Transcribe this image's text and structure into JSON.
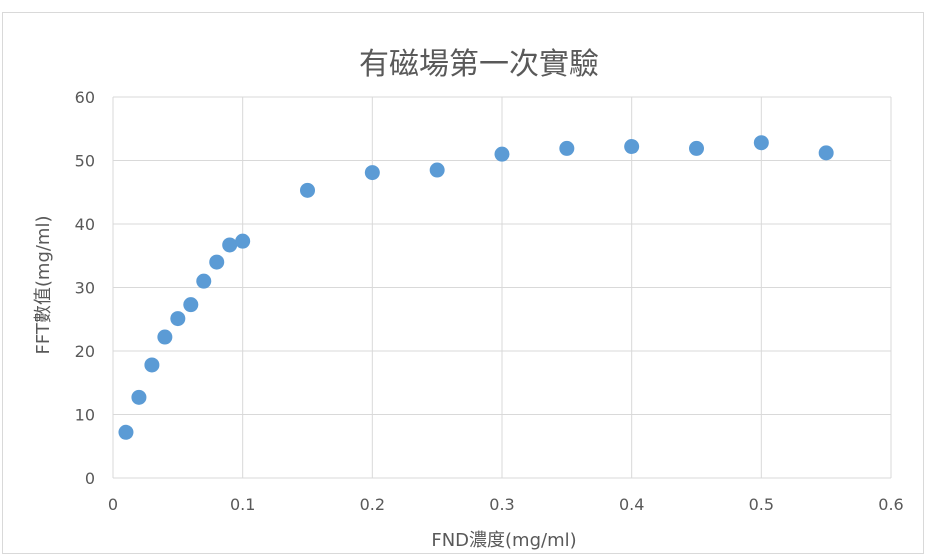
{
  "chart_data": {
    "type": "scatter",
    "title": "有磁場第一次實驗",
    "xlabel": "FND濃度(mg/ml)",
    "ylabel": "FFT數值(mg/ml)",
    "xlim": [
      0,
      0.6
    ],
    "ylim": [
      0,
      60
    ],
    "x_ticks": [
      "0",
      "0.1",
      "0.2",
      "0.3",
      "0.4",
      "0.5",
      "0.6"
    ],
    "y_ticks": [
      "0",
      "10",
      "20",
      "30",
      "40",
      "50",
      "60"
    ],
    "x_tick_values": [
      0,
      0.1,
      0.2,
      0.3,
      0.4,
      0.5,
      0.6
    ],
    "y_tick_values": [
      0,
      10,
      20,
      30,
      40,
      50,
      60
    ],
    "grid": true,
    "legend": "none",
    "marker_color": "#5b9bd5",
    "points": [
      {
        "x": 0.01,
        "y": 7.2
      },
      {
        "x": 0.02,
        "y": 12.7
      },
      {
        "x": 0.03,
        "y": 17.8
      },
      {
        "x": 0.04,
        "y": 22.2
      },
      {
        "x": 0.05,
        "y": 25.1
      },
      {
        "x": 0.06,
        "y": 27.3
      },
      {
        "x": 0.07,
        "y": 31.0
      },
      {
        "x": 0.08,
        "y": 34.0
      },
      {
        "x": 0.09,
        "y": 36.7
      },
      {
        "x": 0.1,
        "y": 37.3
      },
      {
        "x": 0.15,
        "y": 45.3
      },
      {
        "x": 0.2,
        "y": 48.1
      },
      {
        "x": 0.25,
        "y": 48.5
      },
      {
        "x": 0.3,
        "y": 51.0
      },
      {
        "x": 0.35,
        "y": 51.9
      },
      {
        "x": 0.4,
        "y": 52.2
      },
      {
        "x": 0.45,
        "y": 51.9
      },
      {
        "x": 0.5,
        "y": 52.8
      },
      {
        "x": 0.55,
        "y": 51.2
      }
    ]
  }
}
